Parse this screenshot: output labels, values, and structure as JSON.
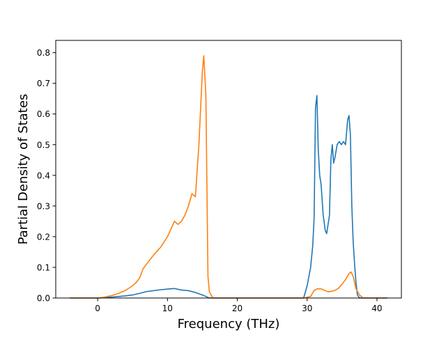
{
  "chart_data": {
    "type": "line",
    "title": "",
    "xlabel": "Frequency (THz)",
    "ylabel": "Partial Density of States",
    "xlim": [
      -6,
      43.5
    ],
    "ylim": [
      0,
      0.84
    ],
    "xticks": [
      0,
      10,
      20,
      30,
      40
    ],
    "yticks": [
      0.0,
      0.1,
      0.2,
      0.3,
      0.4,
      0.5,
      0.6,
      0.7,
      0.8
    ],
    "xtick_labels": [
      "0",
      "10",
      "20",
      "30",
      "40"
    ],
    "ytick_labels": [
      "0.0",
      "0.1",
      "0.2",
      "0.3",
      "0.4",
      "0.5",
      "0.6",
      "0.7",
      "0.8"
    ],
    "grid": false,
    "legend": "none",
    "series": [
      {
        "color": "#1f77b4",
        "x": [
          -4,
          0,
          1,
          2,
          3,
          4,
          5,
          6,
          7,
          8,
          9,
          10,
          11,
          12,
          13,
          14,
          14.5,
          15,
          15.5,
          16,
          29.5,
          30,
          30.5,
          30.8,
          31,
          31.2,
          31.4,
          31.6,
          31.8,
          32,
          32.3,
          32.6,
          32.8,
          33,
          33.2,
          33.4,
          33.6,
          33.8,
          34,
          34.3,
          34.6,
          34.9,
          35.2,
          35.5,
          35.8,
          36,
          36.2,
          36.4,
          36.6,
          36.8,
          37,
          37.2,
          37.5,
          38,
          41.5
        ],
        "y": [
          0,
          0,
          0.001,
          0.003,
          0.005,
          0.007,
          0.01,
          0.015,
          0.021,
          0.024,
          0.027,
          0.029,
          0.031,
          0.026,
          0.024,
          0.018,
          0.014,
          0.01,
          0.005,
          0,
          0,
          0.04,
          0.1,
          0.17,
          0.26,
          0.62,
          0.66,
          0.48,
          0.4,
          0.37,
          0.27,
          0.22,
          0.21,
          0.24,
          0.27,
          0.45,
          0.5,
          0.44,
          0.46,
          0.5,
          0.51,
          0.5,
          0.51,
          0.5,
          0.58,
          0.595,
          0.53,
          0.3,
          0.18,
          0.11,
          0.05,
          0.01,
          0,
          0,
          0
        ]
      },
      {
        "color": "#ff7f0e",
        "x": [
          -4,
          0,
          1,
          2,
          3,
          4,
          5,
          5.5,
          6,
          6.5,
          7,
          7.5,
          8,
          9,
          10,
          10.5,
          11,
          11.5,
          12,
          12.5,
          13,
          13.5,
          14,
          14.5,
          15,
          15.2,
          15.5,
          15.8,
          16,
          16.5,
          29.5,
          30.5,
          31,
          31.5,
          32,
          32.5,
          33,
          33.5,
          34,
          34.5,
          35,
          35.5,
          36,
          36.3,
          36.6,
          37,
          37.5,
          38,
          41.5
        ],
        "y": [
          0,
          0,
          0.003,
          0.008,
          0.015,
          0.025,
          0.04,
          0.05,
          0.065,
          0.095,
          0.11,
          0.125,
          0.14,
          0.165,
          0.2,
          0.225,
          0.25,
          0.24,
          0.25,
          0.27,
          0.3,
          0.34,
          0.33,
          0.5,
          0.74,
          0.79,
          0.66,
          0.07,
          0.02,
          0,
          0,
          0.005,
          0.025,
          0.03,
          0.03,
          0.025,
          0.02,
          0.022,
          0.025,
          0.032,
          0.045,
          0.06,
          0.08,
          0.085,
          0.07,
          0.03,
          0.01,
          0,
          0
        ]
      }
    ]
  }
}
